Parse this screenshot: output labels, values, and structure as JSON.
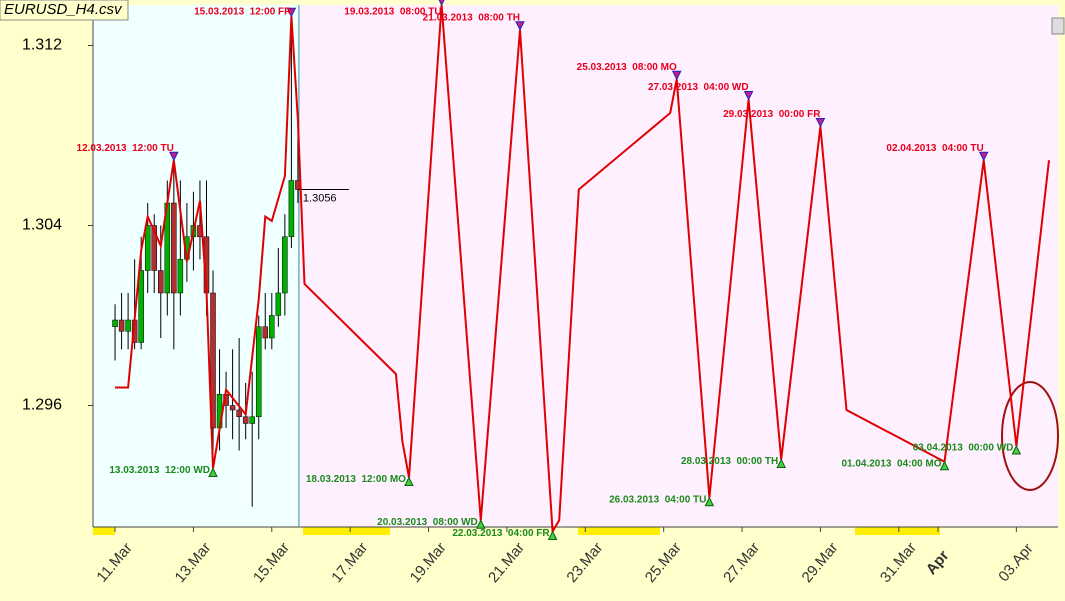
{
  "chart_data": {
    "type": "candlestick",
    "title": "EURUSD_H4.csv",
    "xlim": [
      "2013-03-10 10:30",
      "2013-04-04 01:30"
    ],
    "ylim": [
      1.2906,
      1.3138
    ],
    "yticks": [
      1.296,
      1.304,
      1.312
    ],
    "xticks": [
      {
        "value": "2013-03-11 00:00",
        "label": "11.Mar"
      },
      {
        "value": "2013-03-13 00:00",
        "label": "13.Mar"
      },
      {
        "value": "2013-03-15 00:00",
        "label": "15.Mar"
      },
      {
        "value": "2013-03-17 00:00",
        "label": "17.Mar"
      },
      {
        "value": "2013-03-19 00:00",
        "label": "19.Mar"
      },
      {
        "value": "2013-03-21 00:00",
        "label": "21.Mar"
      },
      {
        "value": "2013-03-23 00:00",
        "label": "23.Mar"
      },
      {
        "value": "2013-03-25 00:00",
        "label": "25.Mar"
      },
      {
        "value": "2013-03-27 00:00",
        "label": "27.Mar"
      },
      {
        "value": "2013-03-29 00:00",
        "label": "29.Mar"
      },
      {
        "value": "2013-03-31 00:00",
        "label": "31.Mar"
      },
      {
        "value": "2013-04-01 00:00",
        "label": "Apr"
      },
      {
        "value": "2013-04-03 00:00",
        "label": "03.Apr"
      }
    ],
    "month_start_color": "#8b0000",
    "candles": {
      "up_color": "#00b000",
      "down_color": "#b03030",
      "x": [
        "2013-03-11 00:00",
        "2013-03-11 04:00",
        "2013-03-11 08:00",
        "2013-03-11 12:00",
        "2013-03-11 16:00",
        "2013-03-11 20:00",
        "2013-03-12 00:00",
        "2013-03-12 04:00",
        "2013-03-12 08:00",
        "2013-03-12 12:00",
        "2013-03-12 16:00",
        "2013-03-12 20:00",
        "2013-03-13 00:00",
        "2013-03-13 04:00",
        "2013-03-13 08:00",
        "2013-03-13 12:00",
        "2013-03-13 16:00",
        "2013-03-13 20:00",
        "2013-03-14 00:00",
        "2013-03-14 04:00",
        "2013-03-14 08:00",
        "2013-03-14 12:00",
        "2013-03-14 16:00",
        "2013-03-14 20:00",
        "2013-03-15 00:00",
        "2013-03-15 04:00",
        "2013-03-15 08:00",
        "2013-03-15 12:00",
        "2013-03-15 16:00"
      ],
      "open": [
        1.2995,
        1.2998,
        1.2993,
        1.2998,
        1.2988,
        1.302,
        1.304,
        1.302,
        1.301,
        1.305,
        1.301,
        1.3025,
        1.3035,
        1.304,
        1.3035,
        1.301,
        1.295,
        1.2965,
        1.296,
        1.2958,
        1.2955,
        1.2952,
        1.2955,
        1.2995,
        1.299,
        1.3,
        1.301,
        1.3035,
        1.306
      ],
      "high": [
        1.3005,
        1.301,
        1.301,
        1.3025,
        1.3035,
        1.305,
        1.3045,
        1.304,
        1.306,
        1.307,
        1.306,
        1.305,
        1.3055,
        1.306,
        1.306,
        1.302,
        1.2985,
        1.2975,
        1.2985,
        1.299,
        1.297,
        1.2975,
        1.3,
        1.301,
        1.301,
        1.303,
        1.3045,
        1.3125,
        1.309
      ],
      "low": [
        1.298,
        1.2985,
        1.2985,
        1.2985,
        1.2985,
        1.301,
        1.301,
        1.299,
        1.3,
        1.2985,
        1.3,
        1.3015,
        1.302,
        1.3025,
        1.3,
        1.2931,
        1.294,
        1.295,
        1.2945,
        1.294,
        1.2945,
        1.2915,
        1.2945,
        1.2985,
        1.2985,
        1.2995,
        1.3,
        1.303,
        1.305
      ],
      "close": [
        1.2998,
        1.2993,
        1.2998,
        1.2988,
        1.302,
        1.304,
        1.302,
        1.301,
        1.305,
        1.301,
        1.3025,
        1.3035,
        1.304,
        1.3035,
        1.301,
        1.295,
        1.2965,
        1.296,
        1.2958,
        1.2955,
        1.2952,
        1.2955,
        1.2995,
        1.299,
        1.3,
        1.301,
        1.3035,
        1.306,
        1.3056
      ]
    },
    "line": {
      "color": "#e00000",
      "x": [
        "2013-03-11 00:00",
        "2013-03-11 08:00",
        "2013-03-11 16:00",
        "2013-03-11 20:00",
        "2013-03-12 04:00",
        "2013-03-12 12:00",
        "2013-03-12 20:00",
        "2013-03-13 04:00",
        "2013-03-13 08:00",
        "2013-03-13 12:00",
        "2013-03-13 20:00",
        "2013-03-14 08:00",
        "2013-03-14 16:00",
        "2013-03-14 20:00",
        "2013-03-15 00:00",
        "2013-03-15 08:00",
        "2013-03-15 12:00",
        "2013-03-15 16:00",
        "2013-03-15 20:00",
        "2013-03-18 04:00",
        "2013-03-18 08:00",
        "2013-03-18 12:00",
        "2013-03-19 08:00",
        "2013-03-20 08:00",
        "2013-03-21 08:00",
        "2013-03-22 04:00",
        "2013-03-22 08:00",
        "2013-03-22 20:00",
        "2013-03-25 04:00",
        "2013-03-25 08:00",
        "2013-03-26 04:00",
        "2013-03-27 04:00",
        "2013-03-28 00:00",
        "2013-03-29 00:00",
        "2013-03-29 16:00",
        "2013-04-01 04:00",
        "2013-04-02 04:00",
        "2013-04-03 00:00",
        "2013-04-03 20:00"
      ],
      "values": [
        1.2968,
        1.2968,
        1.3029,
        1.3044,
        1.3031,
        1.3069,
        1.3024,
        1.3051,
        1.3011,
        1.2932,
        1.2967,
        1.2956,
        1.3007,
        1.3044,
        1.3042,
        1.3062,
        1.3133,
        1.3087,
        1.3014,
        1.2974,
        1.2944,
        1.2928,
        1.3138,
        1.2909,
        1.3127,
        1.2904,
        1.2909,
        1.3056,
        1.309,
        1.3105,
        1.2919,
        1.3096,
        1.2936,
        1.3084,
        1.2958,
        1.2935,
        1.3069,
        1.2942,
        1.3069
      ]
    },
    "high_color": "#e8001c",
    "low_color": "#1a8a1a",
    "annotations": [
      {
        "kind": "high",
        "x": "2013-03-12 12:00",
        "y": 1.3069,
        "text": "12.03.2013  12:00 TU"
      },
      {
        "kind": "low",
        "x": "2013-03-13 12:00",
        "y": 1.2932,
        "text": "13.03.2013  12:00 WD"
      },
      {
        "kind": "high",
        "x": "2013-03-15 12:00",
        "y": 1.3133,
        "text": "15.03.2013  12:00 FR"
      },
      {
        "kind": "low",
        "x": "2013-03-18 12:00",
        "y": 1.2928,
        "text": "18.03.2013  12:00 MO"
      },
      {
        "kind": "high",
        "x": "2013-03-19 08:00",
        "y": 1.3138,
        "text": "19.03.2013  08:00 TU"
      },
      {
        "kind": "low",
        "x": "2013-03-20 08:00",
        "y": 1.2909,
        "text": "20.03.2013  08:00 WD"
      },
      {
        "kind": "high",
        "x": "2013-03-21 08:00",
        "y": 1.3127,
        "text": "21.03.2013  08:00 TH"
      },
      {
        "kind": "low",
        "x": "2013-03-22 04:00",
        "y": 1.2904,
        "text": "22.03.2013  04:00 FR"
      },
      {
        "kind": "high",
        "x": "2013-03-25 08:00",
        "y": 1.3105,
        "text": "25.03.2013  08:00 MO"
      },
      {
        "kind": "low",
        "x": "2013-03-26 04:00",
        "y": 1.2919,
        "text": "26.03.2013  04:00 TU"
      },
      {
        "kind": "high",
        "x": "2013-03-27 04:00",
        "y": 1.3096,
        "text": "27.03.2013  04:00 WD"
      },
      {
        "kind": "low",
        "x": "2013-03-28 00:00",
        "y": 1.2936,
        "text": "28.03.2013  00:00 TH"
      },
      {
        "kind": "high",
        "x": "2013-03-29 00:00",
        "y": 1.3084,
        "text": "29.03.2013  00:00 FR"
      },
      {
        "kind": "low",
        "x": "2013-04-01 04:00",
        "y": 1.2935,
        "text": "01.04.2013  04:00 MO"
      },
      {
        "kind": "high",
        "x": "2013-04-02 04:00",
        "y": 1.3069,
        "text": "02.04.2013  04:00 TU"
      },
      {
        "kind": "low",
        "x": "2013-04-03 00:00",
        "y": 1.2942,
        "text": "03.04.2013  00:00 WD"
      }
    ]
  }
}
